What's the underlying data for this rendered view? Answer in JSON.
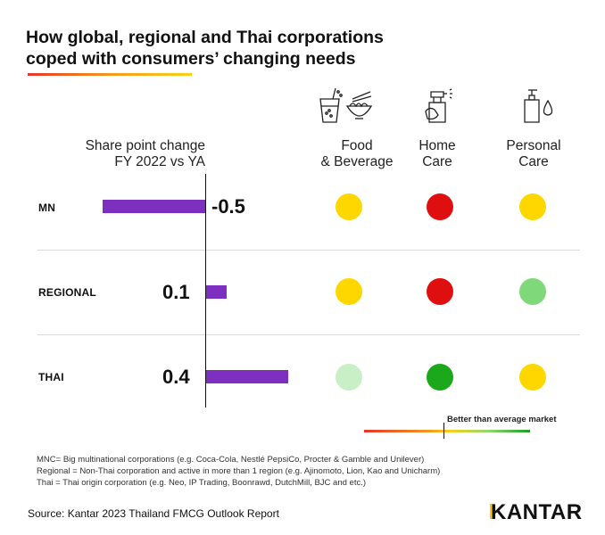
{
  "header": {
    "title_line1": "How global, regional and Thai corporations",
    "title_line2": "coped with consumers’ changing needs"
  },
  "columns": {
    "share_line1": "Share point change",
    "share_line2": "FY 2022 vs YA",
    "categories": [
      {
        "line1": "Food",
        "line2": "& Beverage",
        "icon": "food-beverage-icon"
      },
      {
        "line1": "Home",
        "line2": "Care",
        "icon": "spray-bottle-icon"
      },
      {
        "line1": "Personal",
        "line2": "Care",
        "icon": "pump-bottle-drop-icon"
      }
    ]
  },
  "chart_data": {
    "type": "bar",
    "orientation": "horizontal",
    "categories": [
      "MN",
      "REGIONAL",
      "THAI"
    ],
    "values": [
      -0.5,
      0.1,
      0.4
    ],
    "value_labels": [
      "-0.5",
      "0.1",
      "0.4"
    ],
    "xlim": [
      -0.5,
      0.4
    ],
    "bar_color": "#7d2fbf"
  },
  "ratings": {
    "scale": [
      "#e00f0f",
      "#ffd700",
      "#7fd97a",
      "#1ba81b"
    ],
    "rows": [
      {
        "row": "MN",
        "values": [
          "#ffd700",
          "#e00f0f",
          "#ffd700"
        ]
      },
      {
        "row": "REGIONAL",
        "values": [
          "#ffd700",
          "#e00f0f",
          "#7fd97a"
        ]
      },
      {
        "row": "THAI",
        "values": [
          "#c8efc6",
          "#1ba81b",
          "#ffd700"
        ]
      }
    ]
  },
  "legend": {
    "text": "Better than average market"
  },
  "notes": [
    "MNC= Big multinational corporations (e.g. Coca-Cola, Nestlé  PepsiCo, Procter & Gamble and Unilever)",
    "Regional = Non-Thai corporation and active in more than 1 region (e.g. Ajinomoto, Lion, Kao and Unicharm)",
    "Thai = Thai origin corporation (e.g. Neo, IP Trading, Boonrawd, DutchMill, BJC and etc.)"
  ],
  "footer": {
    "source": "Source: Kantar 2023 Thailand FMCG Outlook Report",
    "logo": "KANTAR"
  }
}
